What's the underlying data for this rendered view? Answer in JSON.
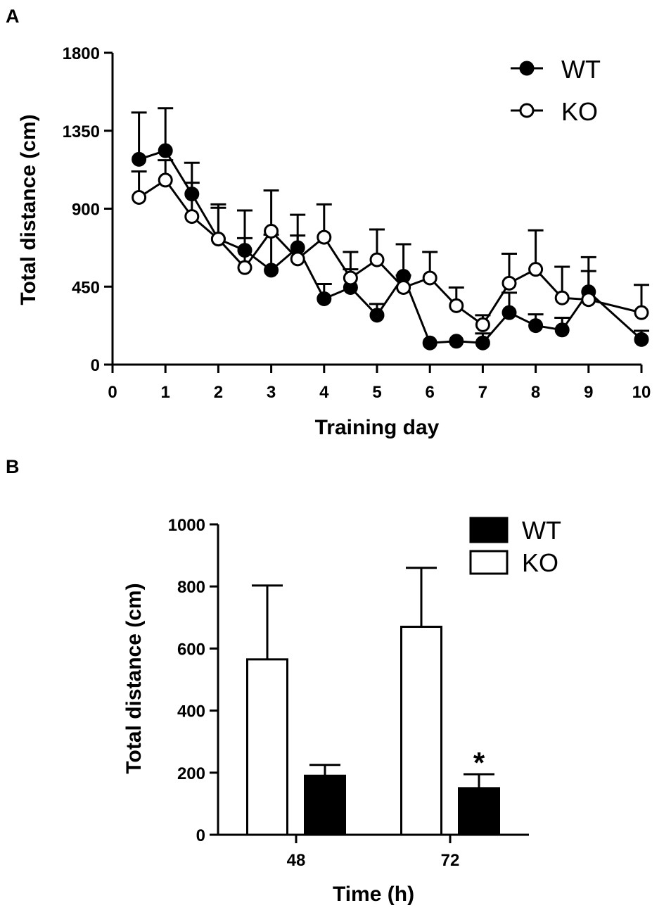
{
  "chart_data": [
    {
      "panel": "A",
      "type": "line",
      "xlabel": "Training day",
      "ylabel": "Total distance (cm)",
      "xlim": [
        0,
        10
      ],
      "ylim": [
        0,
        1800
      ],
      "xticks": [
        "0",
        "1",
        "2",
        "3",
        "4",
        "5",
        "6",
        "7",
        "8",
        "9",
        "10"
      ],
      "yticks": [
        "0",
        "450",
        "900",
        "1350",
        "1800"
      ],
      "x": [
        0.5,
        1,
        1.5,
        2,
        2.5,
        3,
        3.5,
        4,
        4.5,
        5,
        5.5,
        6,
        6.5,
        7,
        7.5,
        8,
        8.5,
        9,
        10
      ],
      "series": [
        {
          "name": "WT",
          "marker": "filled-circle",
          "values": [
            1185,
            1235,
            985,
            725,
            660,
            545,
            675,
            380,
            445,
            285,
            510,
            125,
            135,
            125,
            300,
            225,
            200,
            420,
            145
          ],
          "errors": [
            270,
            245,
            180,
            200,
            230,
            205,
            190,
            85,
            105,
            65,
            185,
            0,
            0,
            55,
            115,
            65,
            70,
            200,
            50
          ]
        },
        {
          "name": "KO",
          "marker": "open-circle",
          "values": [
            965,
            1065,
            855,
            725,
            560,
            770,
            610,
            735,
            500,
            605,
            445,
            500,
            340,
            230,
            470,
            550,
            385,
            375,
            300
          ],
          "errors": [
            150,
            115,
            195,
            180,
            170,
            235,
            135,
            190,
            150,
            175,
            70,
            150,
            105,
            55,
            170,
            225,
            180,
            165,
            160
          ]
        }
      ],
      "legend": "top-right"
    },
    {
      "panel": "B",
      "type": "bar",
      "xlabel": "Time (h)",
      "ylabel": "Total distance (cm)",
      "categories": [
        "48",
        "72"
      ],
      "ylim": [
        0,
        1000
      ],
      "yticks": [
        "0",
        "200",
        "400",
        "600",
        "800",
        "1000"
      ],
      "series": [
        {
          "name": "WT",
          "fill": "filled",
          "values": [
            190,
            150
          ],
          "errors": [
            35,
            45
          ]
        },
        {
          "name": "KO",
          "fill": "open",
          "values": [
            565,
            670
          ],
          "errors": [
            238,
            190
          ]
        }
      ],
      "bar_order": [
        "KO",
        "WT"
      ],
      "annotations": [
        {
          "category": "72",
          "series": "WT",
          "text": "*"
        }
      ],
      "legend": "top-right"
    }
  ],
  "colors": {
    "ink": "#000000",
    "paper": "#ffffff"
  }
}
